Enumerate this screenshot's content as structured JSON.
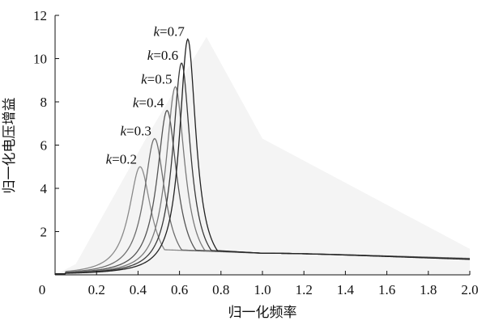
{
  "chart_data": {
    "type": "line",
    "xlabel": "归一化频率",
    "ylabel": "归一化电压增益",
    "xlim": [
      0,
      2.0
    ],
    "ylim": [
      0,
      12
    ],
    "x_ticks": [
      "0",
      "0.2",
      "0.4",
      "0.6",
      "0.8",
      "1.0",
      "1.2",
      "1.4",
      "1.6",
      "1.8",
      "2.0"
    ],
    "y_ticks": [
      "2",
      "4",
      "6",
      "8",
      "10",
      "12"
    ],
    "grid": false,
    "series": [
      {
        "name": "k=0.2",
        "k_symbol": "k",
        "k_value": "=0.2",
        "peak_x": 0.41,
        "peak_y": 5.0,
        "color": "#8a8a8a"
      },
      {
        "name": "k=0.3",
        "k_symbol": "k",
        "k_value": "=0.3",
        "peak_x": 0.48,
        "peak_y": 6.3,
        "color": "#6e6e6e"
      },
      {
        "name": "k=0.4",
        "k_symbol": "k",
        "k_value": "=0.4",
        "peak_x": 0.54,
        "peak_y": 7.6,
        "color": "#555555"
      },
      {
        "name": "k=0.5",
        "k_symbol": "k",
        "k_value": "=0.5",
        "peak_x": 0.58,
        "peak_y": 8.7,
        "color": "#7a7a7a"
      },
      {
        "name": "k=0.6",
        "k_symbol": "k",
        "k_value": "=0.6",
        "peak_x": 0.61,
        "peak_y": 9.8,
        "color": "#3a3a3a"
      },
      {
        "name": "k=0.7",
        "k_symbol": "k",
        "k_value": "=0.7",
        "peak_x": 0.64,
        "peak_y": 10.9,
        "color": "#222222"
      }
    ],
    "background_region": {
      "color": "#f4f4f4",
      "peak_x": 0.73,
      "peak_y": 11.0
    }
  }
}
